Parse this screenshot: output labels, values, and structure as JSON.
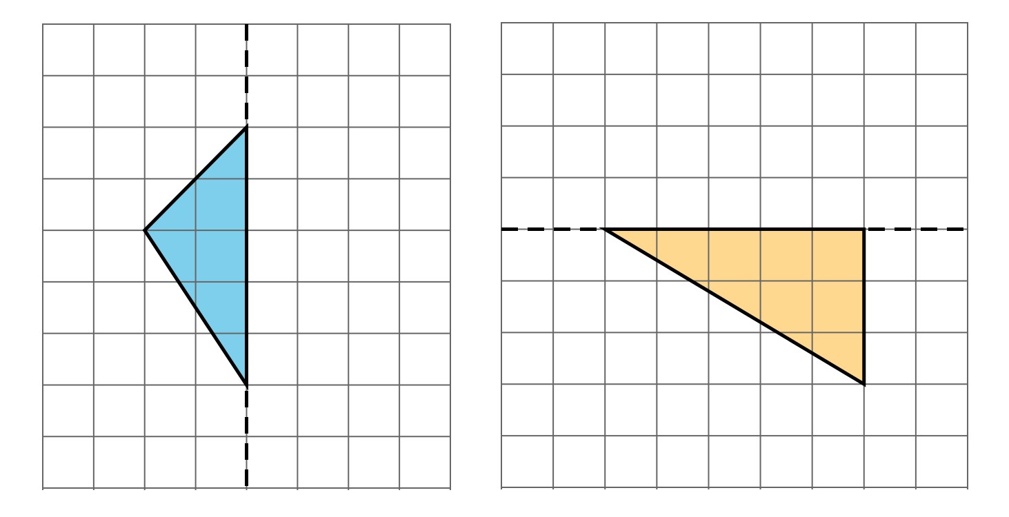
{
  "colors": {
    "grid": "#666666",
    "outline": "#000000",
    "background": "#ffffff"
  },
  "panels": [
    {
      "name": "left-grid",
      "cols": 8,
      "rows": 9,
      "fill": "#7ecfeb",
      "triangle": [
        [
          4,
          2
        ],
        [
          2,
          4
        ],
        [
          4,
          7
        ]
      ],
      "reflection_line": {
        "orientation": "vertical",
        "at": 4
      }
    },
    {
      "name": "right-grid",
      "cols": 9,
      "rows": 9,
      "fill": "#ffd890",
      "triangle": [
        [
          2,
          4
        ],
        [
          7,
          4
        ],
        [
          7,
          7
        ]
      ],
      "reflection_line": {
        "orientation": "horizontal",
        "at": 4
      }
    }
  ]
}
